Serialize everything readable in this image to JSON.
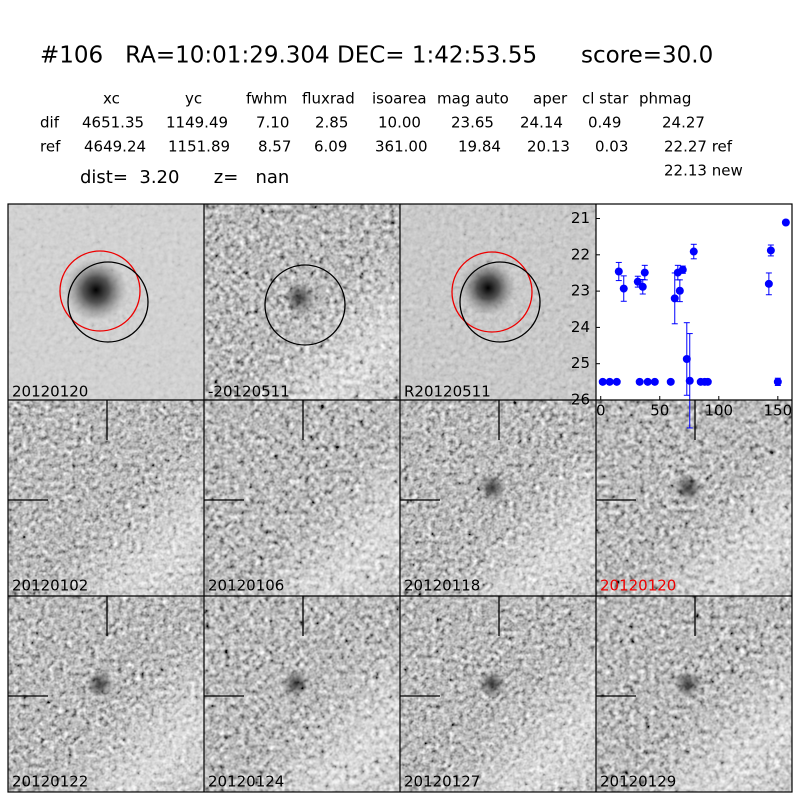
{
  "header": {
    "title": "#106   RA=10:01:29.304 DEC= 1:42:53.55      score=30.0",
    "dist": "dist=  3.20      z=   nan"
  },
  "table": {
    "columns": [
      "xc",
      "yc",
      "fwhm",
      "fluxrad",
      "isoarea",
      "mag auto",
      "aper",
      "cl star",
      "phmag"
    ],
    "rows": [
      [
        "dif",
        "4651.35",
        "1149.49",
        "7.10",
        "2.85",
        "10.00",
        "23.65",
        "24.14",
        "0.49",
        "24.27"
      ],
      [
        "ref",
        "4649.24",
        "1151.89",
        "8.57",
        "6.09",
        "361.00",
        "19.84",
        "20.13",
        "0.03",
        "22.27 ref"
      ]
    ],
    "extra": "22.13 new"
  },
  "stamps": [
    "20120120",
    "-20120511",
    "R20120511",
    "20120102",
    "20120106",
    "20120118",
    "20120120",
    "20120122",
    "20120124",
    "20120127",
    "20120129"
  ],
  "chart_data": {
    "type": "scatter",
    "color": "#0000ff",
    "x": [
      1.7,
      7.6,
      13.6,
      15.3,
      19.5,
      31.4,
      33,
      35.6,
      37.3,
      39.8,
      45.8,
      59.3,
      62.7,
      65.3,
      67,
      69.5,
      72.9,
      75.4,
      78.8,
      84.7,
      88.1,
      90.7,
      142.4,
      144.1,
      150,
      156.8
    ],
    "values": [
      25.5,
      25.5,
      25.5,
      22.46,
      22.93,
      22.74,
      25.5,
      22.88,
      22.49,
      25.5,
      25.5,
      25.5,
      23.2,
      22.49,
      22.99,
      22.41,
      24.87,
      25.47,
      21.91,
      25.5,
      25.5,
      25.5,
      22.8,
      21.88,
      25.5,
      21.11
    ],
    "errors": [
      0,
      0,
      0,
      0.25,
      0.35,
      0.15,
      0,
      0.2,
      0.2,
      0,
      0,
      0,
      0.7,
      0.2,
      0.3,
      0.1,
      1.0,
      1.3,
      0.2,
      0,
      0,
      0,
      0.3,
      0.15,
      0.1,
      0.05
    ],
    "xlim": [
      -4,
      162
    ],
    "ylim": [
      26,
      20.6
    ],
    "xticks": [
      0,
      50,
      100,
      150
    ],
    "yticks": [
      21,
      22,
      23,
      24,
      25,
      26
    ]
  }
}
